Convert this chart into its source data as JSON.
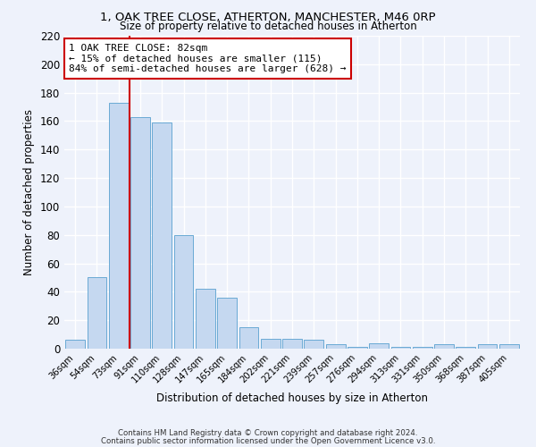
{
  "title1": "1, OAK TREE CLOSE, ATHERTON, MANCHESTER, M46 0RP",
  "title2": "Size of property relative to detached houses in Atherton",
  "xlabel": "Distribution of detached houses by size in Atherton",
  "ylabel": "Number of detached properties",
  "bar_labels": [
    "36sqm",
    "54sqm",
    "73sqm",
    "91sqm",
    "110sqm",
    "128sqm",
    "147sqm",
    "165sqm",
    "184sqm",
    "202sqm",
    "221sqm",
    "239sqm",
    "257sqm",
    "276sqm",
    "294sqm",
    "313sqm",
    "331sqm",
    "350sqm",
    "368sqm",
    "387sqm",
    "405sqm"
  ],
  "bar_values": [
    6,
    50,
    173,
    163,
    159,
    80,
    42,
    36,
    15,
    7,
    7,
    6,
    3,
    1,
    4,
    1,
    1,
    3,
    1,
    3,
    3
  ],
  "bar_color": "#c5d8f0",
  "bar_edge_color": "#6aaad4",
  "property_line_bin_index": 2.5,
  "annotation_text": "1 OAK TREE CLOSE: 82sqm\n← 15% of detached houses are smaller (115)\n84% of semi-detached houses are larger (628) →",
  "annotation_box_color": "#ffffff",
  "annotation_box_edge": "#cc0000",
  "vline_color": "#cc0000",
  "ylim": [
    0,
    220
  ],
  "yticks": [
    0,
    20,
    40,
    60,
    80,
    100,
    120,
    140,
    160,
    180,
    200,
    220
  ],
  "background_color": "#eef2fb",
  "grid_color": "#ffffff",
  "footer1": "Contains HM Land Registry data © Crown copyright and database right 2024.",
  "footer2": "Contains public sector information licensed under the Open Government Licence v3.0."
}
